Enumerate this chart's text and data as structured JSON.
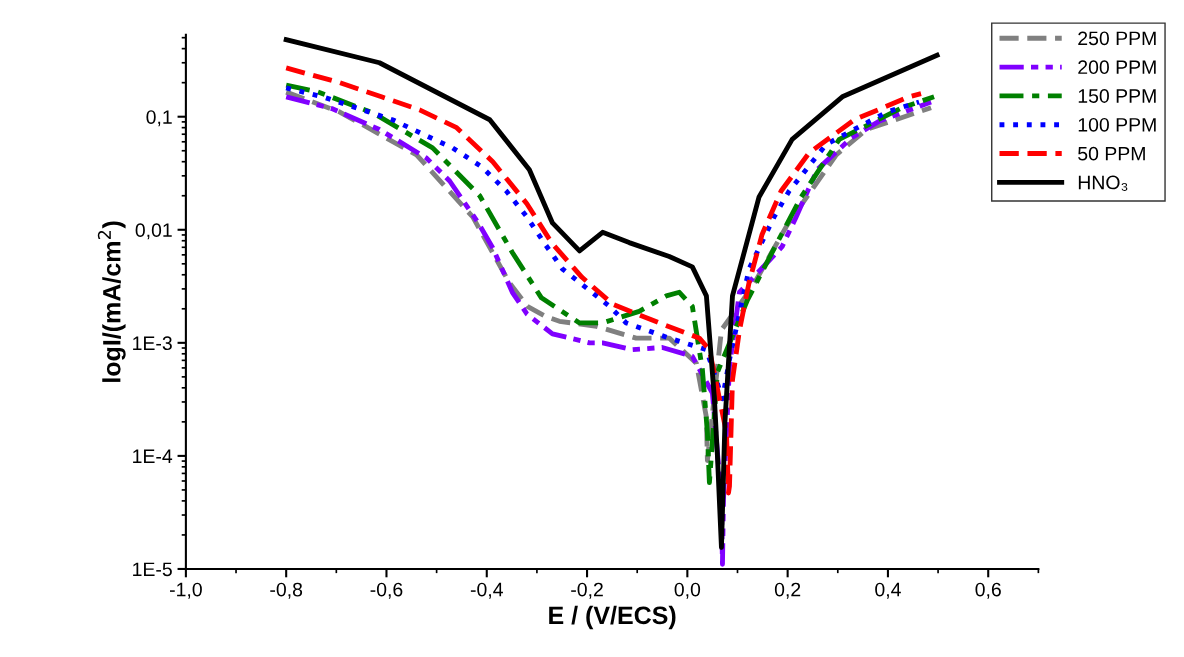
{
  "chart_data": {
    "type": "line",
    "xlabel": "E / (V/ECS)",
    "ylabel": "logI/(mA/cm$^{2}$)",
    "log": "y",
    "xlim": [
      -1.0,
      0.7
    ],
    "xticks": [
      {
        "value": -1.0,
        "label": "-1,0"
      },
      {
        "value": -0.8,
        "label": "-0,8"
      },
      {
        "value": -0.6,
        "label": "-0,6"
      },
      {
        "value": -0.4,
        "label": "-0,4"
      },
      {
        "value": -0.2,
        "label": "-0,2"
      },
      {
        "value": 0.0,
        "label": "0,0"
      },
      {
        "value": 0.2,
        "label": "0,2"
      },
      {
        "value": 0.4,
        "label": "0,4"
      },
      {
        "value": 0.6,
        "label": "0,6"
      }
    ],
    "ylim": [
      1e-05,
      0.53
    ],
    "yticks": [
      {
        "value": 1e-05,
        "label": "1E-5"
      },
      {
        "value": 0.0001,
        "label": "1E-4"
      },
      {
        "value": 0.001,
        "label": "1E-3"
      },
      {
        "value": 0.01,
        "label": "0,01"
      },
      {
        "value": 0.1,
        "label": "0,1"
      }
    ],
    "legend": "top right",
    "grid": false,
    "marker": "none",
    "series": [
      {
        "name": "250 PPM",
        "color": "#808080",
        "line_style": "dashed",
        "x": [
          -0.8,
          -0.693,
          -0.54,
          -0.428,
          -0.355,
          -0.319,
          -0.281,
          -0.255,
          -0.181,
          -0.102,
          -0.036,
          0.018,
          0.038,
          0.04,
          0.068,
          0.129,
          0.199,
          0.297,
          0.357,
          0.486
        ],
        "values": [
          0.165,
          0.11,
          0.046,
          0.013,
          0.0034,
          0.0021,
          0.0017,
          0.00155,
          0.0014,
          0.0011,
          0.0011,
          0.00066,
          0.00022,
          9.1e-05,
          0.0013,
          0.0031,
          0.011,
          0.046,
          0.077,
          0.12
        ]
      },
      {
        "name": "200 PPM",
        "color": "#8000ff",
        "line_style": "dashdotdot",
        "x": [
          -0.8,
          -0.709,
          -0.614,
          -0.52,
          -0.474,
          -0.418,
          -0.388,
          -0.349,
          -0.32,
          -0.269,
          -0.195,
          -0.169,
          -0.11,
          -0.05,
          0.01,
          0.05,
          0.068,
          0.07,
          0.072,
          0.084,
          0.104,
          0.189,
          0.217,
          0.259,
          0.327,
          0.382,
          0.486
        ],
        "values": [
          0.15,
          0.118,
          0.077,
          0.043,
          0.027,
          0.0117,
          0.0069,
          0.0028,
          0.0018,
          0.0012,
          0.001,
          0.001,
          0.00087,
          0.00091,
          0.00076,
          0.00036,
          4.1e-05,
          1.1e-05,
          4.1e-05,
          0.00062,
          0.0028,
          0.0071,
          0.013,
          0.034,
          0.065,
          0.091,
          0.135
        ]
      },
      {
        "name": "150 PPM",
        "color": "#008000",
        "line_style": "dashdot",
        "x": [
          -0.8,
          -0.739,
          -0.627,
          -0.508,
          -0.414,
          -0.349,
          -0.291,
          -0.215,
          -0.169,
          -0.096,
          -0.042,
          -0.016,
          0.01,
          0.03,
          0.04,
          0.044,
          0.06,
          0.12,
          0.169,
          0.227,
          0.303,
          0.428,
          0.492
        ],
        "values": [
          0.19,
          0.167,
          0.108,
          0.053,
          0.02,
          0.0063,
          0.0025,
          0.0015,
          0.0015,
          0.0019,
          0.0026,
          0.0028,
          0.0021,
          0.00058,
          0.00016,
          5.8e-05,
          0.00055,
          0.0024,
          0.0063,
          0.0195,
          0.063,
          0.12,
          0.15
        ]
      },
      {
        "name": "100 PPM",
        "color": "#0000ff",
        "line_style": "dotted",
        "x": [
          -0.8,
          -0.723,
          -0.588,
          -0.524,
          -0.468,
          -0.41,
          -0.361,
          -0.32,
          -0.285,
          -0.249,
          -0.155,
          -0.122,
          -0.036,
          0.038,
          0.07,
          0.084,
          0.123,
          0.173,
          0.203,
          0.277,
          0.398,
          0.462
        ],
        "values": [
          0.18,
          0.148,
          0.094,
          0.069,
          0.053,
          0.036,
          0.022,
          0.013,
          0.0076,
          0.0045,
          0.0021,
          0.0015,
          0.0011,
          0.00087,
          0.00032,
          0.00071,
          0.0045,
          0.013,
          0.022,
          0.057,
          0.11,
          0.135
        ]
      },
      {
        "name": "50 PPM",
        "color": "#ff0000",
        "line_style": "dashed",
        "x": [
          -0.8,
          -0.693,
          -0.61,
          -0.534,
          -0.46,
          -0.388,
          -0.32,
          -0.27,
          -0.21,
          -0.149,
          -0.056,
          0.024,
          0.044,
          0.078,
          0.082,
          0.084,
          0.09,
          0.104,
          0.123,
          0.149,
          0.187,
          0.243,
          0.333,
          0.442,
          0.466
        ],
        "values": [
          0.27,
          0.2,
          0.15,
          0.115,
          0.08,
          0.04,
          0.017,
          0.0076,
          0.0038,
          0.0022,
          0.0015,
          0.0011,
          0.00087,
          0.00016,
          4.7e-05,
          5.4e-05,
          0.00047,
          0.0013,
          0.0034,
          0.0091,
          0.022,
          0.048,
          0.094,
          0.15,
          0.16
        ]
      },
      {
        "name": "HNO₃",
        "color": "#000000",
        "line_style": "solid",
        "x": [
          -0.8,
          -0.614,
          -0.394,
          -0.315,
          -0.269,
          -0.215,
          -0.169,
          -0.116,
          -0.036,
          0.01,
          0.038,
          0.054,
          0.06,
          0.068,
          0.075,
          0.09,
          0.143,
          0.209,
          0.309,
          0.498
        ],
        "values": [
          0.48,
          0.3,
          0.094,
          0.034,
          0.0115,
          0.0065,
          0.0095,
          0.0077,
          0.0058,
          0.0047,
          0.0026,
          0.00032,
          0.0001,
          1.55e-05,
          0.0002,
          0.0026,
          0.0195,
          0.063,
          0.15,
          0.35
        ]
      }
    ]
  }
}
